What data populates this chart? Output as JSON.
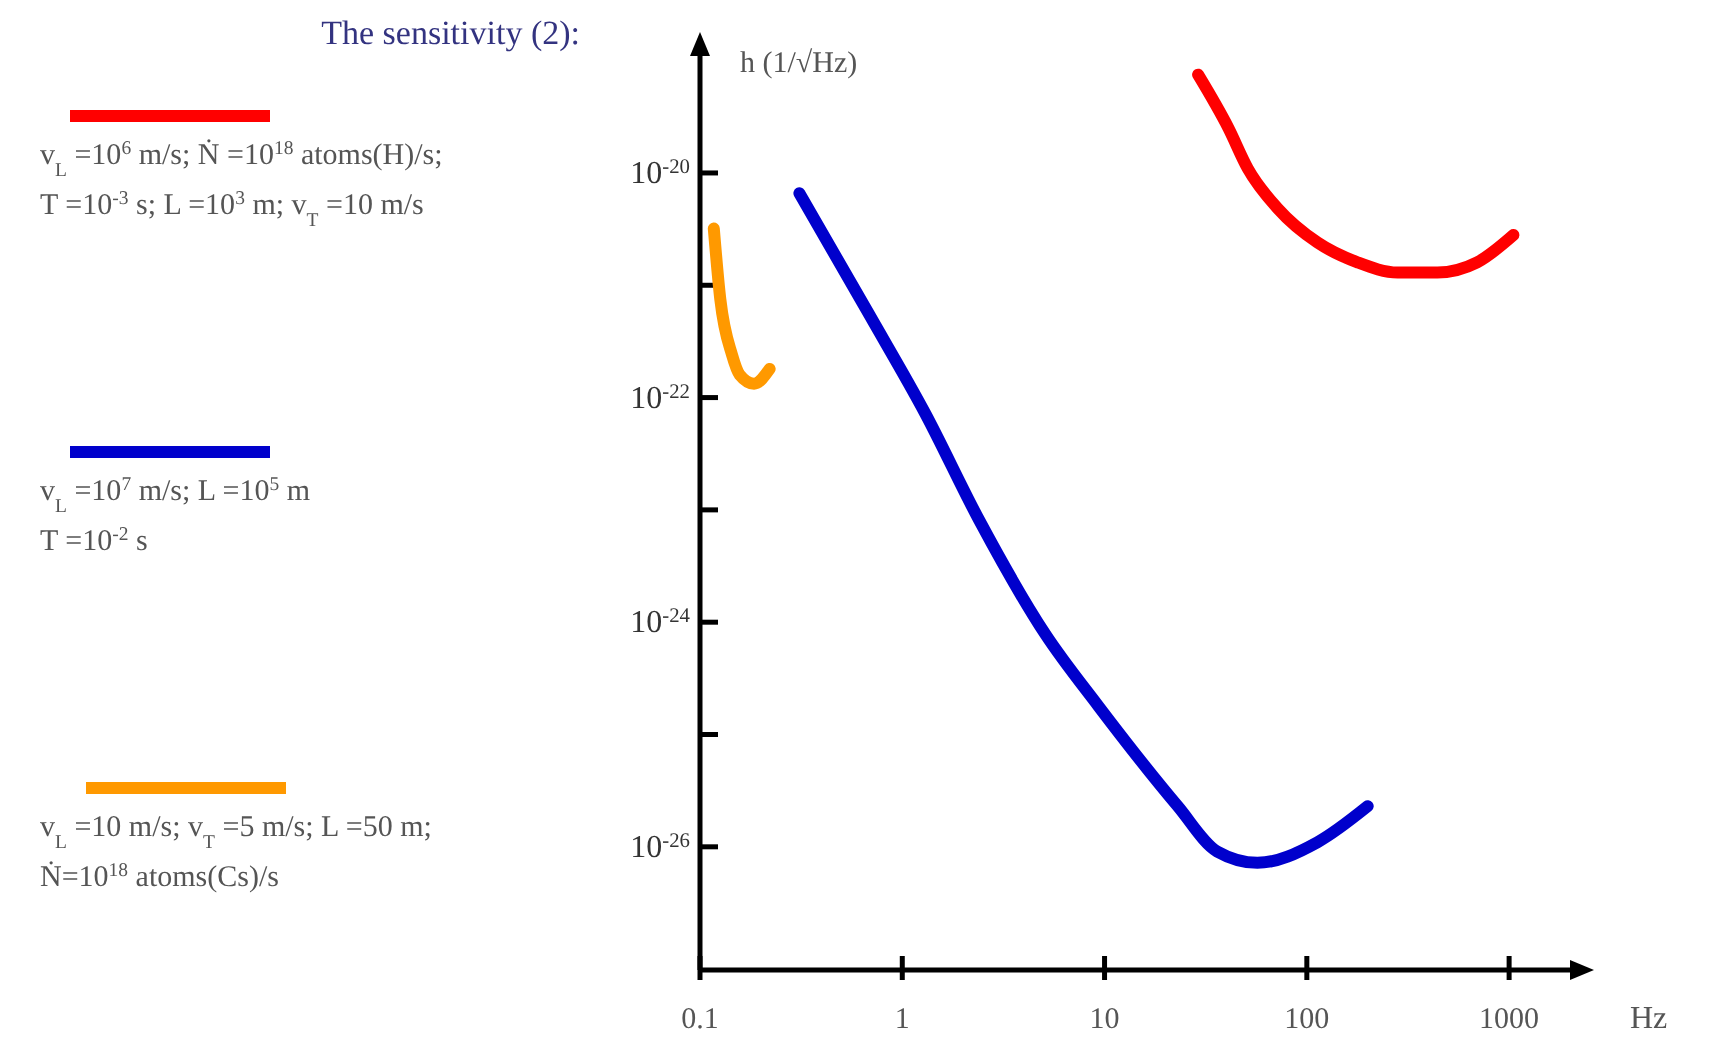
{
  "chart_data": {
    "type": "line",
    "title": "The sensitivity (2):",
    "ylabel": "h (1/√Hz)",
    "xlabel": "Hz",
    "log": "xy",
    "xlim": [
      0.1,
      2000
    ],
    "xticks": [
      0.1,
      1,
      10,
      100,
      1000
    ],
    "ylim": [
      8e-28,
      1.1e-19
    ],
    "yticks": [
      {
        "value": 1e-20,
        "label": "10$^{-20}$"
      },
      {
        "value": 1e-21,
        "label": null
      },
      {
        "value": 1e-22,
        "label": "10$^{-22}$"
      },
      {
        "value": 1e-23,
        "label": null
      },
      {
        "value": 1e-24,
        "label": "10$^{-24}$"
      },
      {
        "value": 1e-25,
        "label": null
      },
      {
        "value": 1e-26,
        "label": "10$^{-26}$"
      }
    ],
    "series": [
      {
        "name": "v$_{L}$ =10$^{6}$ m/s; Ṅ =10$^{18}$ atoms(H)/s;\nT =10$^{-3}$ s; L =10$^{3}$ m; v$_{T}$ =10 m/s",
        "color": "#ff0000",
        "x": [
          29,
          41,
          51,
          72,
          113,
          178,
          281,
          442,
          695,
          1050
        ],
        "values": [
          7.5e-20,
          2.5e-20,
          1.1e-20,
          4.8e-21,
          2.4e-21,
          1.6e-21,
          1.3e-21,
          1.3e-21,
          1.6e-21,
          2.8e-21
        ]
      },
      {
        "name": "v$_{L}$ =10$^{7}$ m/s; L =10$^{5}$ m\nT =10$^{-2}$ s",
        "color": "#0000cc",
        "x": [
          0.31,
          0.69,
          1.3,
          2.4,
          5.1,
          9.3,
          23,
          36,
          57,
          113,
          200
        ],
        "values": [
          6.6e-21,
          5.4e-22,
          7.2e-23,
          8.1e-24,
          7.8e-25,
          1.8e-25,
          2.3e-26,
          9.1e-27,
          7.2e-27,
          1.1e-26,
          2.3e-26
        ]
      },
      {
        "name": "v$_{L}$ =10 m/s; v$_{T}$ =5 m/s; L =50 m;\nṄ=10$^{18}$ atoms(Cs)/s",
        "color": "#ff9900",
        "x": [
          0.117,
          0.126,
          0.144,
          0.157,
          0.185,
          0.221
        ],
        "values": [
          3.2e-21,
          7.5e-22,
          2.4e-22,
          1.6e-22,
          1.33e-22,
          1.8e-22
        ]
      }
    ]
  }
}
